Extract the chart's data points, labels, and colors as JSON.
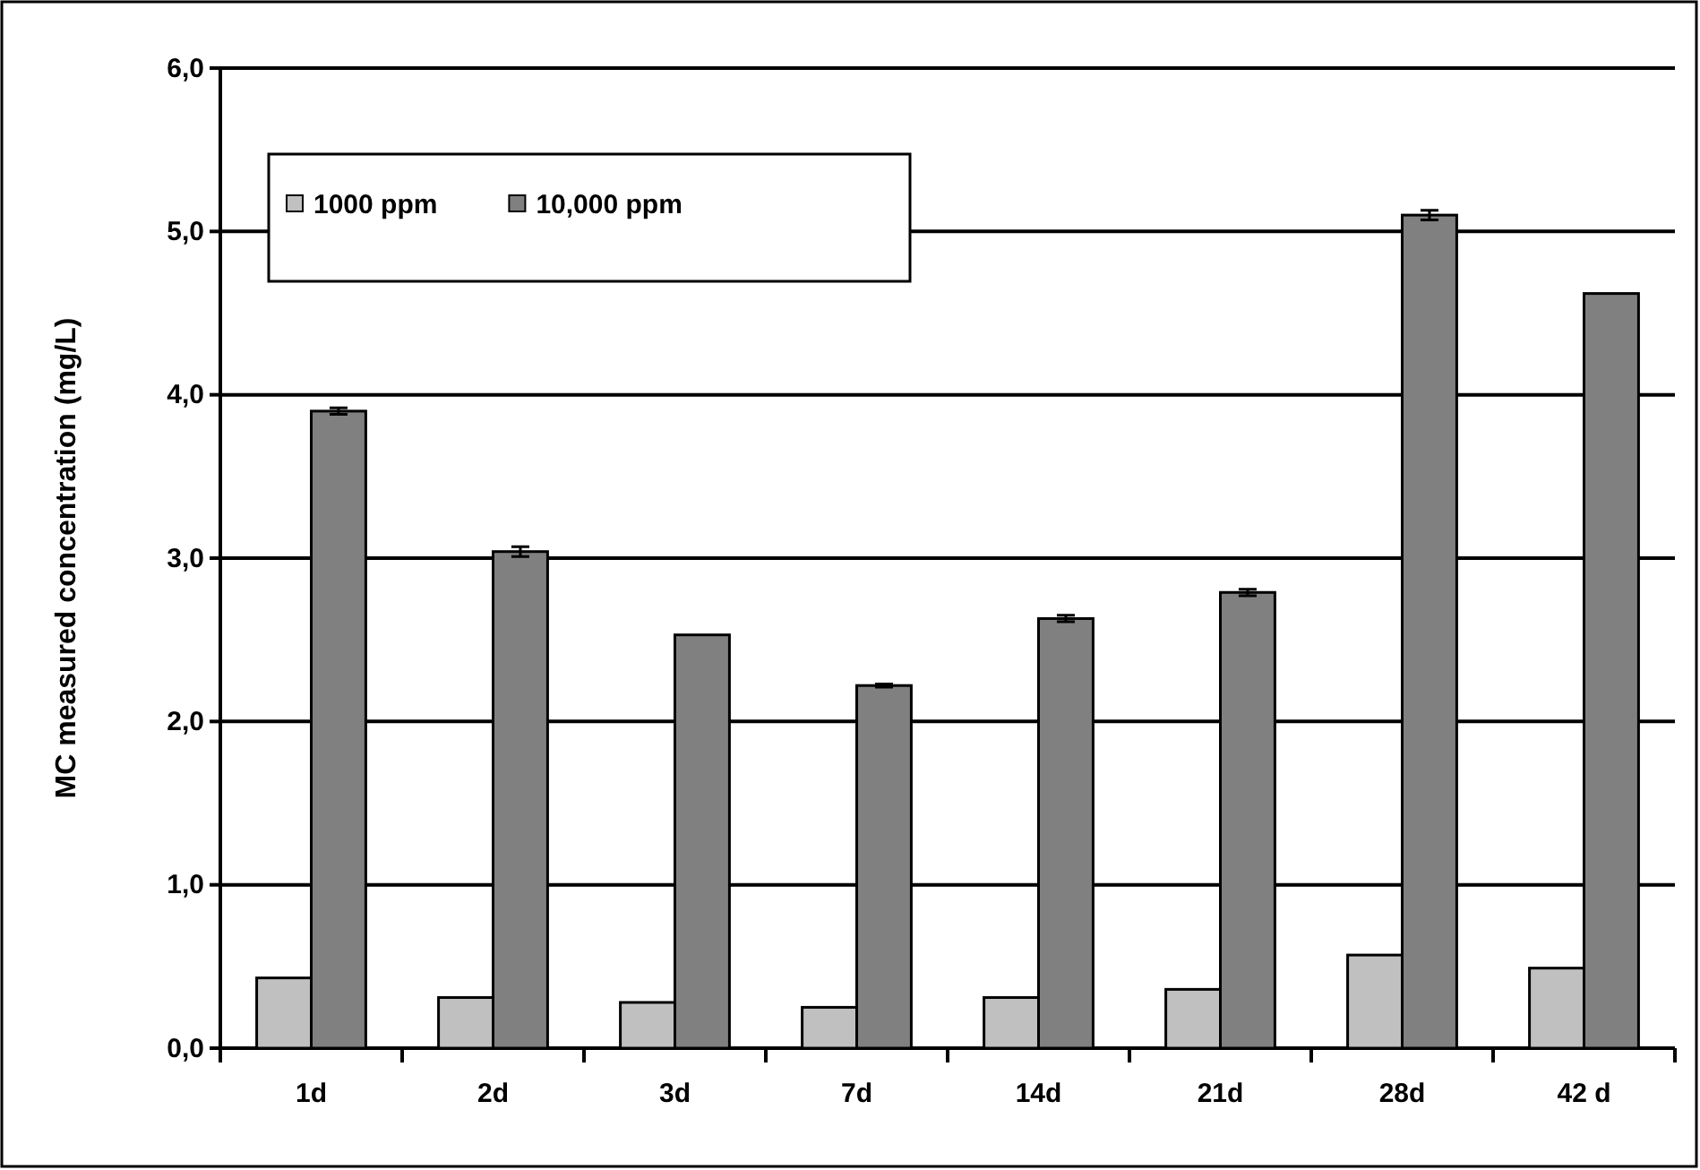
{
  "chart_data": {
    "type": "bar",
    "ylabel": "MC measured concentration (mg/L)",
    "categories": [
      "1d",
      "2d",
      "3d",
      "7d",
      "14d",
      "21d",
      "28d",
      "42 d"
    ],
    "series": [
      {
        "name": "1000 ppm",
        "color": "#c0c0c0",
        "values": [
          0.43,
          0.31,
          0.28,
          0.25,
          0.31,
          0.36,
          0.57,
          0.49
        ]
      },
      {
        "name": "10,000 ppm",
        "color": "#808080",
        "values": [
          3.9,
          3.04,
          2.53,
          2.22,
          2.63,
          2.79,
          5.1,
          4.62
        ],
        "errors": [
          0.02,
          0.03,
          null,
          0.01,
          0.02,
          0.02,
          0.03,
          null
        ]
      }
    ],
    "ylim": [
      0,
      6
    ],
    "yticks": [
      {
        "value": 0,
        "label": "0,0"
      },
      {
        "value": 1,
        "label": "1,0"
      },
      {
        "value": 2,
        "label": "2,0"
      },
      {
        "value": 3,
        "label": "3,0"
      },
      {
        "value": 4,
        "label": "4,0"
      },
      {
        "value": 5,
        "label": "5,0"
      },
      {
        "value": 6,
        "label": "6,0"
      }
    ],
    "grid": "y",
    "legend": "top left"
  }
}
